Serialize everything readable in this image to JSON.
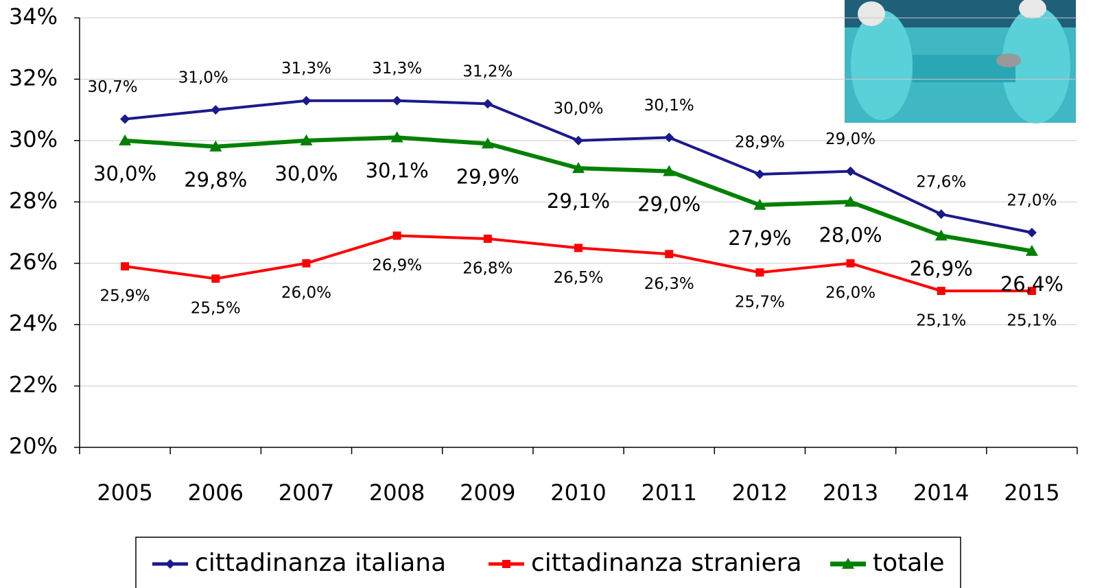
{
  "chart_data": {
    "type": "line",
    "categories": [
      "2005",
      "2006",
      "2007",
      "2008",
      "2009",
      "2010",
      "2011",
      "2012",
      "2013",
      "2014",
      "2015"
    ],
    "series": [
      {
        "name": "cittadinanza italiana",
        "color": "#1a1a8c",
        "marker": "diamond",
        "values": [
          30.7,
          31.0,
          31.3,
          31.3,
          31.2,
          30.0,
          30.1,
          28.9,
          29.0,
          27.6,
          27.0
        ],
        "value_labels": [
          "30,7%",
          "31,0%",
          "31,3%",
          "31,3%",
          "31,2%",
          "30,0%",
          "30,1%",
          "28,9%",
          "29,0%",
          "27,6%",
          "27,0%"
        ]
      },
      {
        "name": "cittadinanza straniera",
        "color": "#ff0000",
        "marker": "square",
        "values": [
          25.9,
          25.5,
          26.0,
          26.9,
          26.8,
          26.5,
          26.3,
          25.7,
          26.0,
          25.1,
          25.1
        ],
        "value_labels": [
          "25,9%",
          "25,5%",
          "26,0%",
          "26,9%",
          "26,8%",
          "26,5%",
          "26,3%",
          "25,7%",
          "26,0%",
          "25,1%",
          "25,1%"
        ]
      },
      {
        "name": "totale",
        "color": "#008000",
        "marker": "triangle",
        "values": [
          30.0,
          29.8,
          30.0,
          30.1,
          29.9,
          29.1,
          29.0,
          27.9,
          28.0,
          26.9,
          26.4
        ],
        "value_labels": [
          "30,0%",
          "29,8%",
          "30,0%",
          "30,1%",
          "29,9%",
          "29,1%",
          "29,0%",
          "27,9%",
          "28,0%",
          "26,9%",
          "26,4%"
        ]
      }
    ],
    "ylim": [
      20,
      34
    ],
    "yticks": [
      {
        "value": 20,
        "label": "20%"
      },
      {
        "value": 22,
        "label": "22%"
      },
      {
        "value": 24,
        "label": "24%"
      },
      {
        "value": 26,
        "label": "26%"
      },
      {
        "value": 28,
        "label": "28%"
      },
      {
        "value": 30,
        "label": "30%"
      },
      {
        "value": 32,
        "label": "32%"
      },
      {
        "value": 34,
        "label": "34%"
      }
    ],
    "grid": true,
    "legend": "bottom"
  }
}
